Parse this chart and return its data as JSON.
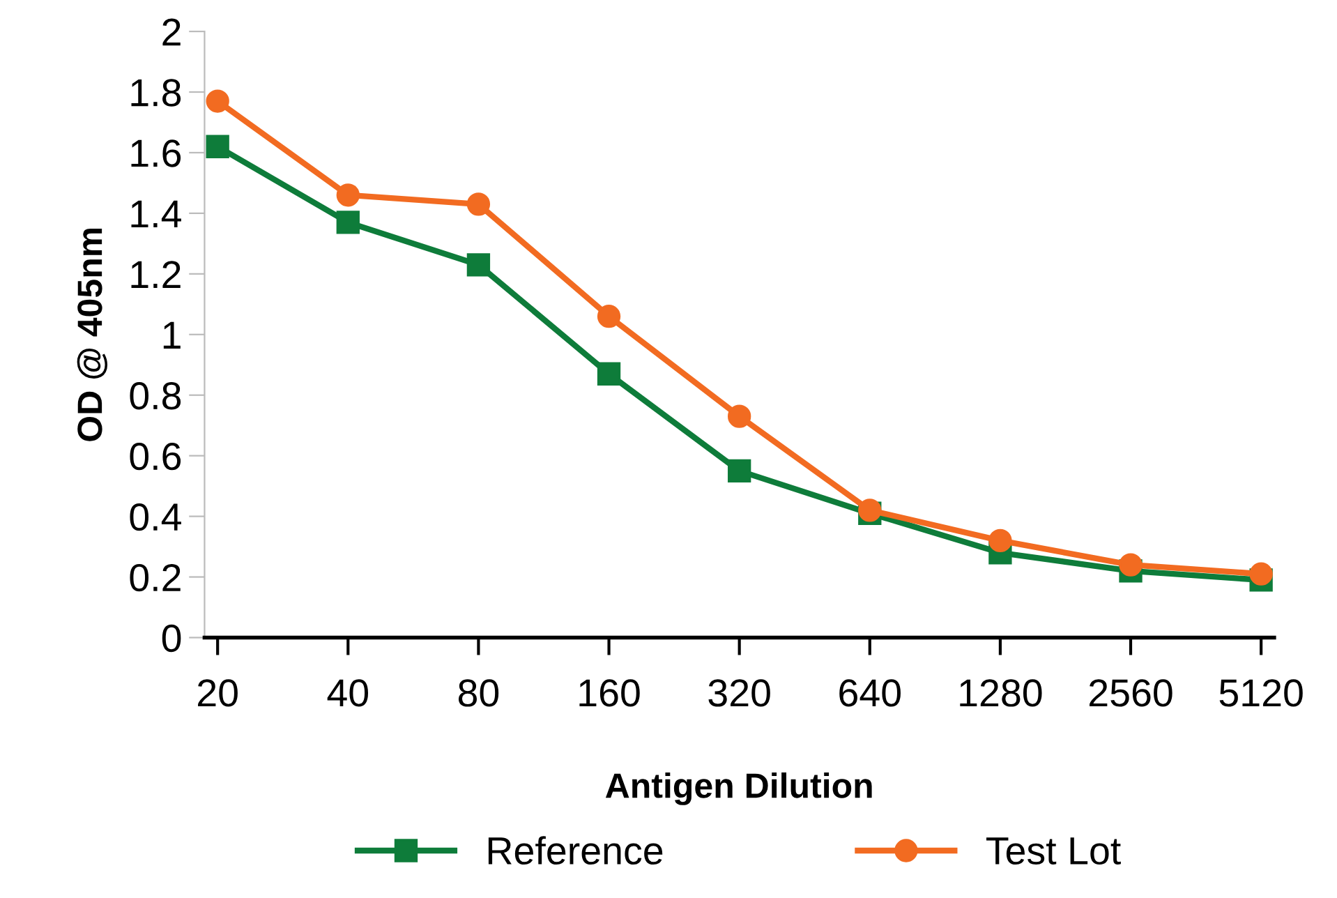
{
  "chart_data": {
    "type": "line",
    "xlabel": "Antigen Dilution",
    "ylabel": "OD @ 405nm",
    "categories": [
      "20",
      "40",
      "80",
      "160",
      "320",
      "640",
      "1280",
      "2560",
      "5120"
    ],
    "series": [
      {
        "name": "Reference",
        "color": "#0e7c3a",
        "marker": "square",
        "values": [
          1.62,
          1.37,
          1.23,
          0.87,
          0.55,
          0.41,
          0.28,
          0.22,
          0.19
        ]
      },
      {
        "name": "Test Lot",
        "color": "#f26b21",
        "marker": "circle",
        "values": [
          1.77,
          1.46,
          1.43,
          1.06,
          0.73,
          0.42,
          0.32,
          0.24,
          0.21
        ]
      }
    ],
    "ylim": [
      0,
      2
    ],
    "yticks": [
      0,
      0.2,
      0.4,
      0.6,
      0.8,
      1,
      1.2,
      1.4,
      1.6,
      1.8,
      2
    ],
    "grid": false,
    "legend": "bottom",
    "line_style": "solid"
  }
}
